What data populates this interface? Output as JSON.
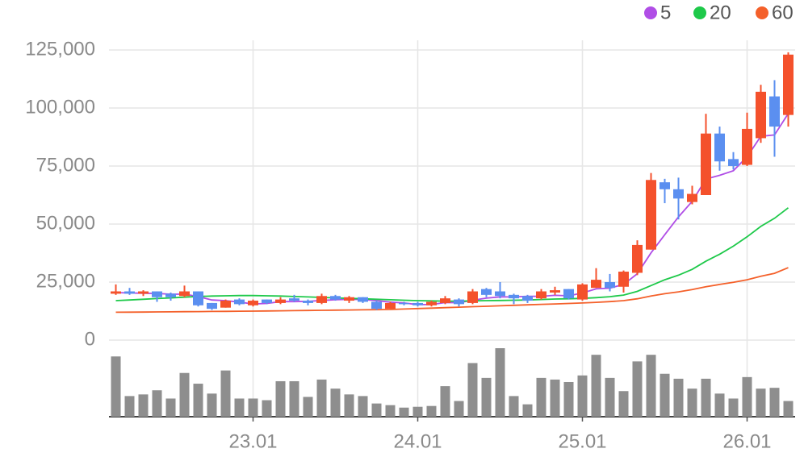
{
  "chart_data": {
    "type": "candlestick",
    "categories": [
      null,
      null,
      null,
      null,
      null,
      null,
      null,
      null,
      null,
      null,
      "23.01",
      null,
      null,
      null,
      null,
      null,
      null,
      null,
      null,
      null,
      null,
      null,
      "24.01",
      null,
      null,
      null,
      null,
      null,
      null,
      null,
      null,
      null,
      null,
      null,
      "25.01",
      null,
      null,
      null,
      null,
      null,
      null,
      null,
      null,
      null,
      null,
      null,
      "26.01",
      null,
      null,
      null
    ],
    "open": [
      20000,
      21000,
      20000,
      21000,
      20000,
      19000,
      21000,
      16000,
      14000,
      17500,
      15000,
      17500,
      16000,
      18000,
      17000,
      16000,
      19000,
      17000,
      18500,
      16500,
      13500,
      16000,
      16000,
      15000,
      16000,
      17500,
      16000,
      22000,
      21000,
      19500,
      19000,
      18000,
      20500,
      22000,
      17500,
      22500,
      25000,
      23000,
      29000,
      39000,
      68000,
      65000,
      59500,
      62500,
      89000,
      78000,
      75500,
      87000,
      105000,
      97000
    ],
    "high": [
      24000,
      22500,
      21500,
      21000,
      20500,
      23500,
      21000,
      16000,
      17500,
      18000,
      17500,
      17500,
      18500,
      19500,
      17500,
      20000,
      19500,
      19000,
      18500,
      17000,
      16500,
      16500,
      16500,
      17000,
      19000,
      18000,
      22000,
      22500,
      25000,
      20000,
      19500,
      22000,
      23000,
      22000,
      24500,
      31000,
      28500,
      30000,
      43000,
      72000,
      69500,
      70000,
      66500,
      97500,
      92000,
      81000,
      98000,
      110000,
      112000,
      124000
    ],
    "low": [
      19500,
      19500,
      19000,
      16500,
      17000,
      18500,
      14500,
      13000,
      14000,
      15000,
      14500,
      15500,
      15500,
      16500,
      15000,
      15500,
      17000,
      16000,
      16000,
      13000,
      13500,
      15000,
      14500,
      14500,
      15500,
      14500,
      15500,
      18500,
      18000,
      15500,
      16000,
      17500,
      19500,
      17500,
      17000,
      22500,
      21000,
      20500,
      28000,
      39000,
      59000,
      52000,
      58500,
      62500,
      73000,
      73500,
      75000,
      85000,
      79000,
      92000
    ],
    "close": [
      21000,
      20000,
      21000,
      18500,
      18500,
      21000,
      15000,
      13500,
      17000,
      15500,
      17000,
      16000,
      17500,
      17000,
      16000,
      19000,
      17500,
      18500,
      16500,
      13500,
      16000,
      15500,
      15000,
      16500,
      18000,
      15500,
      21000,
      19500,
      19000,
      18000,
      17000,
      21000,
      21500,
      18000,
      24000,
      26000,
      22500,
      29500,
      41000,
      69000,
      65000,
      61000,
      63000,
      89000,
      77000,
      75000,
      91000,
      107000,
      92000,
      123000
    ],
    "volume": [
      73,
      25,
      27,
      32,
      22,
      53,
      40,
      28,
      56,
      22,
      22,
      20,
      43,
      43,
      24,
      45,
      34,
      27,
      25,
      16,
      14,
      11,
      12,
      13,
      37,
      19,
      65,
      47,
      83,
      25,
      15,
      47,
      45,
      42,
      50,
      75,
      47,
      31,
      67,
      75,
      52,
      46,
      34,
      46,
      28,
      22,
      48,
      34,
      35,
      19
    ],
    "up_color": "#f4512c",
    "down_color": "#5b8ff0",
    "volume_color": "#8e8e8e",
    "series": [
      {
        "name": "5",
        "color": "#b04ee6",
        "values": [
          20500,
          20300,
          20200,
          20100,
          19800,
          19800,
          18800,
          17300,
          17000,
          16400,
          15600,
          15800,
          16600,
          16600,
          16700,
          17100,
          17400,
          17600,
          17500,
          17000,
          16400,
          16000,
          15300,
          15300,
          16200,
          16100,
          17200,
          18100,
          18600,
          18600,
          18900,
          18900,
          19300,
          19100,
          20300,
          22100,
          22400,
          24000,
          28600,
          37600,
          45400,
          53100,
          59800,
          69400,
          71000,
          73000,
          79000,
          87800,
          88400,
          97600
        ]
      },
      {
        "name": "20",
        "color": "#1ec94a",
        "values": [
          17000,
          17300,
          17600,
          17900,
          18200,
          18500,
          18800,
          19000,
          19100,
          19200,
          19200,
          19100,
          19000,
          18800,
          18600,
          18400,
          18200,
          18000,
          17800,
          17600,
          17400,
          17200,
          17000,
          16900,
          16800,
          16800,
          16900,
          17000,
          17100,
          17200,
          17300,
          17500,
          17700,
          17800,
          18000,
          18300,
          18700,
          19400,
          21000,
          23500,
          26000,
          28000,
          30500,
          34000,
          37000,
          40500,
          44500,
          49000,
          52500,
          57000
        ]
      },
      {
        "name": "60",
        "color": "#f4602a",
        "values": [
          12000,
          12050,
          12100,
          12150,
          12200,
          12250,
          12300,
          12350,
          12400,
          12450,
          12500,
          12570,
          12640,
          12710,
          12780,
          12850,
          12920,
          12990,
          13060,
          13130,
          13200,
          13400,
          13600,
          13800,
          14000,
          14200,
          14400,
          14600,
          14800,
          15000,
          15200,
          15400,
          15600,
          15800,
          16000,
          16300,
          16600,
          17000,
          17800,
          19000,
          20000,
          20800,
          21800,
          23000,
          24000,
          24900,
          26000,
          27500,
          28800,
          31200
        ]
      }
    ],
    "ylim": [
      0,
      125000
    ],
    "yticks": [
      0,
      {
        "value": 25000,
        "label": "25,000"
      },
      {
        "value": 50000,
        "label": "50,000"
      },
      {
        "value": 75000,
        "label": "75,000"
      },
      {
        "value": 100000,
        "label": "100,000"
      },
      {
        "value": 125000,
        "label": "125,000"
      }
    ],
    "grid": true
  }
}
